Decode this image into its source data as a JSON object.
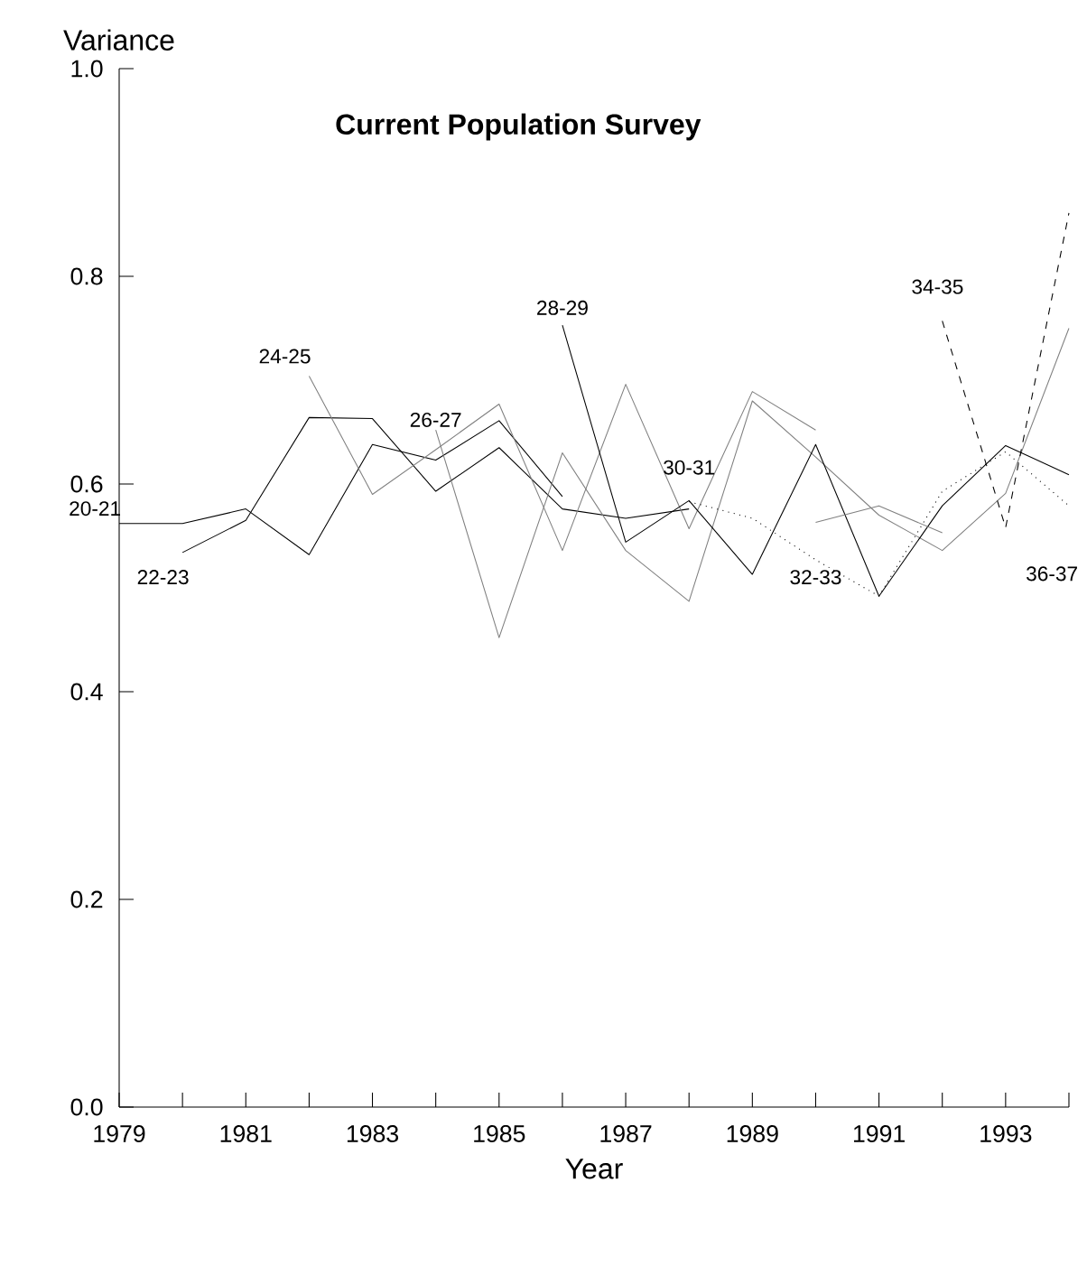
{
  "chart_data": {
    "type": "line",
    "title": "Current Population Survey",
    "xlabel": "Year",
    "ylabel": "Variance",
    "xlim": [
      1979,
      1994
    ],
    "ylim": [
      0,
      1.0
    ],
    "xticks": [
      1979,
      {
        "value": 1980,
        "label": null
      },
      1981,
      {
        "value": 1982,
        "label": null
      },
      1983,
      {
        "value": 1984,
        "label": null
      },
      1985,
      {
        "value": 1986,
        "label": null
      },
      1987,
      {
        "value": 1988,
        "label": null
      },
      1989,
      {
        "value": 1990,
        "label": null
      },
      1991,
      {
        "value": 1992,
        "label": null
      },
      1993,
      {
        "value": 1994,
        "label": null
      }
    ],
    "yticks": [
      {
        "value": 0,
        "label": "0.0"
      },
      0.2,
      0.4,
      0.6,
      0.8,
      {
        "value": 1,
        "label": "1.0"
      }
    ],
    "marker": "none",
    "series": [
      {
        "color": "#000000",
        "line_style": "solid",
        "x": [
          1979,
          1980,
          1981,
          1982,
          1983,
          1984,
          1985,
          1986
        ],
        "values": [
          0.562,
          0.562,
          0.576,
          0.532,
          0.638,
          0.623,
          0.661,
          0.588
        ]
      },
      {
        "color": "#000000",
        "line_style": "solid",
        "x": [
          1980,
          1981,
          1982,
          1983,
          1984,
          1985,
          1986,
          1987,
          1988
        ],
        "values": [
          0.534,
          0.565,
          0.664,
          0.663,
          0.593,
          0.635,
          0.576,
          0.567,
          0.576
        ]
      },
      {
        "color": "#808080",
        "line_style": "solid",
        "x": [
          1982,
          1983,
          1984,
          1985,
          1986,
          1987,
          1988,
          1989,
          1990
        ],
        "values": [
          0.704,
          0.59,
          0.633,
          0.677,
          0.536,
          0.696,
          0.557,
          0.689,
          0.652
        ]
      },
      {
        "color": "#808080",
        "line_style": "solid",
        "x": [
          1984,
          1985,
          1986,
          1987,
          1988,
          1989,
          1990,
          1991,
          1992,
          1993,
          1994
        ],
        "values": [
          0.652,
          0.452,
          0.63,
          0.536,
          0.487,
          0.68,
          0.626,
          0.57,
          0.536,
          0.591,
          0.75
        ]
      },
      {
        "color": "#000000",
        "line_style": "solid",
        "x": [
          1986,
          1987,
          1988,
          1989,
          1990,
          1991,
          1992,
          1993,
          1994
        ],
        "values": [
          0.753,
          0.544,
          0.584,
          0.513,
          0.638,
          0.492,
          0.579,
          0.637,
          0.609
        ]
      },
      {
        "color": "#000000",
        "line_style": "dotted",
        "x": [
          1988,
          1989,
          1990,
          1991,
          1992,
          1993,
          1994
        ],
        "values": [
          0.583,
          0.567,
          0.527,
          0.492,
          0.593,
          0.631,
          0.579
        ]
      },
      {
        "color": "#808080",
        "line_style": "solid",
        "x": [
          1990,
          1991,
          1992
        ],
        "values": [
          0.563,
          0.579,
          0.553
        ]
      },
      {
        "color": "#000000",
        "line_style": "dashed",
        "x": [
          1992,
          1993,
          1994
        ],
        "values": [
          0.757,
          0.558,
          0.861
        ]
      }
    ],
    "annotations": [
      {
        "text": "20-21",
        "x": 1979,
        "y": 0.562
      },
      {
        "text": "22-23",
        "x": 1980,
        "y": 0.534
      },
      {
        "text": "24-25",
        "x": 1982,
        "y": 0.704
      },
      {
        "text": "26-27",
        "x": 1984,
        "y": 0.652
      },
      {
        "text": "28-29",
        "x": 1986,
        "y": 0.753
      },
      {
        "text": "30-31",
        "x": 1988,
        "y": 0.583
      },
      {
        "text": "32-33",
        "x": 1990,
        "y": 0.527
      },
      {
        "text": "34-35",
        "x": 1992,
        "y": 0.757
      },
      {
        "text": "36-37",
        "x": 1994,
        "y": 0.579
      }
    ]
  }
}
